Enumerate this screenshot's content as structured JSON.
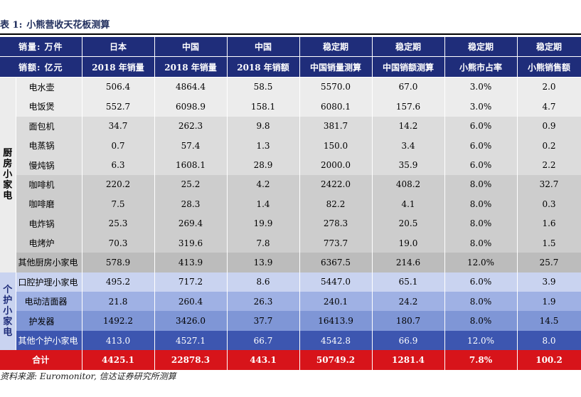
{
  "title": {
    "label": "表 1:",
    "text": "小熊营收天花板测算"
  },
  "header": {
    "row1": [
      "销量: 万件",
      "日本",
      "中国",
      "中国",
      "稳定期",
      "稳定期",
      "稳定期",
      "稳定期"
    ],
    "row2": [
      "销额: 亿元",
      "2018 年销量",
      "2018 年销量",
      "2018 年销额",
      "中国销量测算",
      "中国销额测算",
      "小熊市占率",
      "小熊销售额"
    ]
  },
  "groups": {
    "kitchen": [
      "厨",
      "房",
      "小",
      "家",
      "电"
    ],
    "personal": [
      "个",
      "护",
      "小",
      "家",
      "电"
    ]
  },
  "rows": [
    {
      "name": "电水壶",
      "values": [
        "506.4",
        "4864.4",
        "58.5",
        "5570.0",
        "67.0",
        "3.0%",
        "2.0"
      ]
    },
    {
      "name": "电饭煲",
      "values": [
        "552.7",
        "6098.9",
        "158.1",
        "6080.1",
        "157.6",
        "3.0%",
        "4.7"
      ]
    },
    {
      "name": "面包机",
      "values": [
        "34.7",
        "262.3",
        "9.8",
        "381.7",
        "14.2",
        "6.0%",
        "0.9"
      ]
    },
    {
      "name": "电蒸锅",
      "values": [
        "0.7",
        "57.4",
        "1.3",
        "150.0",
        "3.4",
        "6.0%",
        "0.2"
      ]
    },
    {
      "name": "慢炖锅",
      "values": [
        "6.3",
        "1608.1",
        "28.9",
        "2000.0",
        "35.9",
        "6.0%",
        "2.2"
      ]
    },
    {
      "name": "咖啡机",
      "values": [
        "220.2",
        "25.2",
        "4.2",
        "2422.0",
        "408.2",
        "8.0%",
        "32.7"
      ]
    },
    {
      "name": "咖啡磨",
      "values": [
        "7.5",
        "28.3",
        "1.4",
        "82.2",
        "4.1",
        "8.0%",
        "0.3"
      ]
    },
    {
      "name": "电炸锅",
      "values": [
        "25.3",
        "269.4",
        "19.9",
        "278.3",
        "20.5",
        "8.0%",
        "1.6"
      ]
    },
    {
      "name": "电烤炉",
      "values": [
        "70.3",
        "319.6",
        "7.8",
        "773.7",
        "19.0",
        "8.0%",
        "1.5"
      ]
    },
    {
      "name": "其他厨房小家电",
      "values": [
        "578.9",
        "413.9",
        "13.9",
        "6367.5",
        "214.6",
        "12.0%",
        "25.7"
      ]
    },
    {
      "name": "口腔护理小家电",
      "values": [
        "495.2",
        "717.2",
        "8.6",
        "5447.0",
        "65.1",
        "6.0%",
        "3.9"
      ]
    },
    {
      "name": "电动洁面器",
      "values": [
        "21.8",
        "260.4",
        "26.3",
        "240.1",
        "24.2",
        "8.0%",
        "1.9"
      ]
    },
    {
      "name": "护发器",
      "values": [
        "1492.2",
        "3426.0",
        "37.7",
        "16413.9",
        "180.7",
        "8.0%",
        "14.5"
      ]
    },
    {
      "name": "其他个护小家电",
      "values": [
        "413.0",
        "4527.1",
        "66.7",
        "4542.8",
        "66.9",
        "12.0%",
        "8.0"
      ]
    }
  ],
  "total": {
    "name": "合计",
    "values": [
      "4425.1",
      "22878.3",
      "443.1",
      "50749.2",
      "1281.4",
      "7.8%",
      "100.2"
    ]
  },
  "source": "资料来源: Euromonitor, 信达证券研究所测算"
}
